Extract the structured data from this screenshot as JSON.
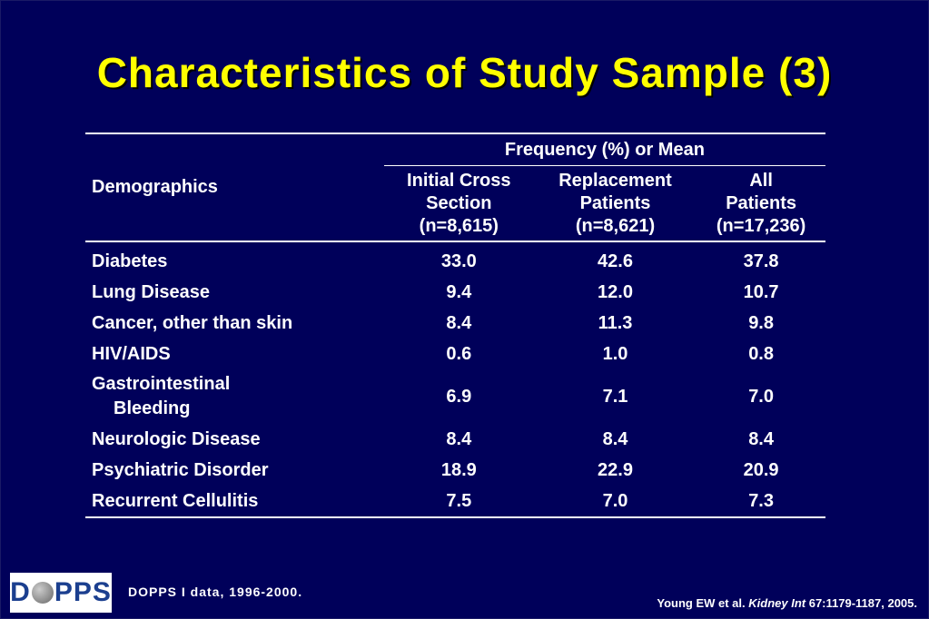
{
  "title": "Characteristics of Study Sample (3)",
  "table": {
    "group_header": "Frequency (%) or Mean",
    "row_header": "Demographics",
    "columns": [
      {
        "line1": "Initial Cross",
        "line2": "Section",
        "line3": "(n=8,615)"
      },
      {
        "line1": "Replacement",
        "line2": "Patients",
        "line3": "(n=8,621)"
      },
      {
        "line1": "All",
        "line2": "Patients",
        "line3": "(n=17,236)"
      }
    ],
    "rows": [
      {
        "label": "Diabetes",
        "label2": "",
        "values": [
          "33.0",
          "42.6",
          "37.8"
        ]
      },
      {
        "label": "Lung Disease",
        "label2": "",
        "values": [
          "9.4",
          "12.0",
          "10.7"
        ]
      },
      {
        "label": "Cancer, other than skin",
        "label2": "",
        "values": [
          "8.4",
          "11.3",
          "9.8"
        ]
      },
      {
        "label": "HIV/AIDS",
        "label2": "",
        "values": [
          "0.6",
          "1.0",
          "0.8"
        ]
      },
      {
        "label": "Gastrointestinal",
        "label2": "Bleeding",
        "values": [
          "6.9",
          "7.1",
          "7.0"
        ]
      },
      {
        "label": "Neurologic Disease",
        "label2": "",
        "values": [
          "8.4",
          "8.4",
          "8.4"
        ]
      },
      {
        "label": "Psychiatric Disorder",
        "label2": "",
        "values": [
          "18.9",
          "22.9",
          "20.9"
        ]
      },
      {
        "label": "Recurrent Cellulitis",
        "label2": "",
        "values": [
          "7.5",
          "7.0",
          "7.3"
        ]
      }
    ]
  },
  "logo": {
    "text_left": "D",
    "text_right": "PPS",
    "icon": "globe-icon"
  },
  "source": "DOPPS I data, 1996-2000.",
  "citation": {
    "authors": "Young EW et al.",
    "journal": "Kidney Int",
    "ref": "67:1179-1187, 2005."
  },
  "colors": {
    "background": "#00005a",
    "title": "#ffff00",
    "text": "#ffffff",
    "logo": "#1b3f8f"
  }
}
